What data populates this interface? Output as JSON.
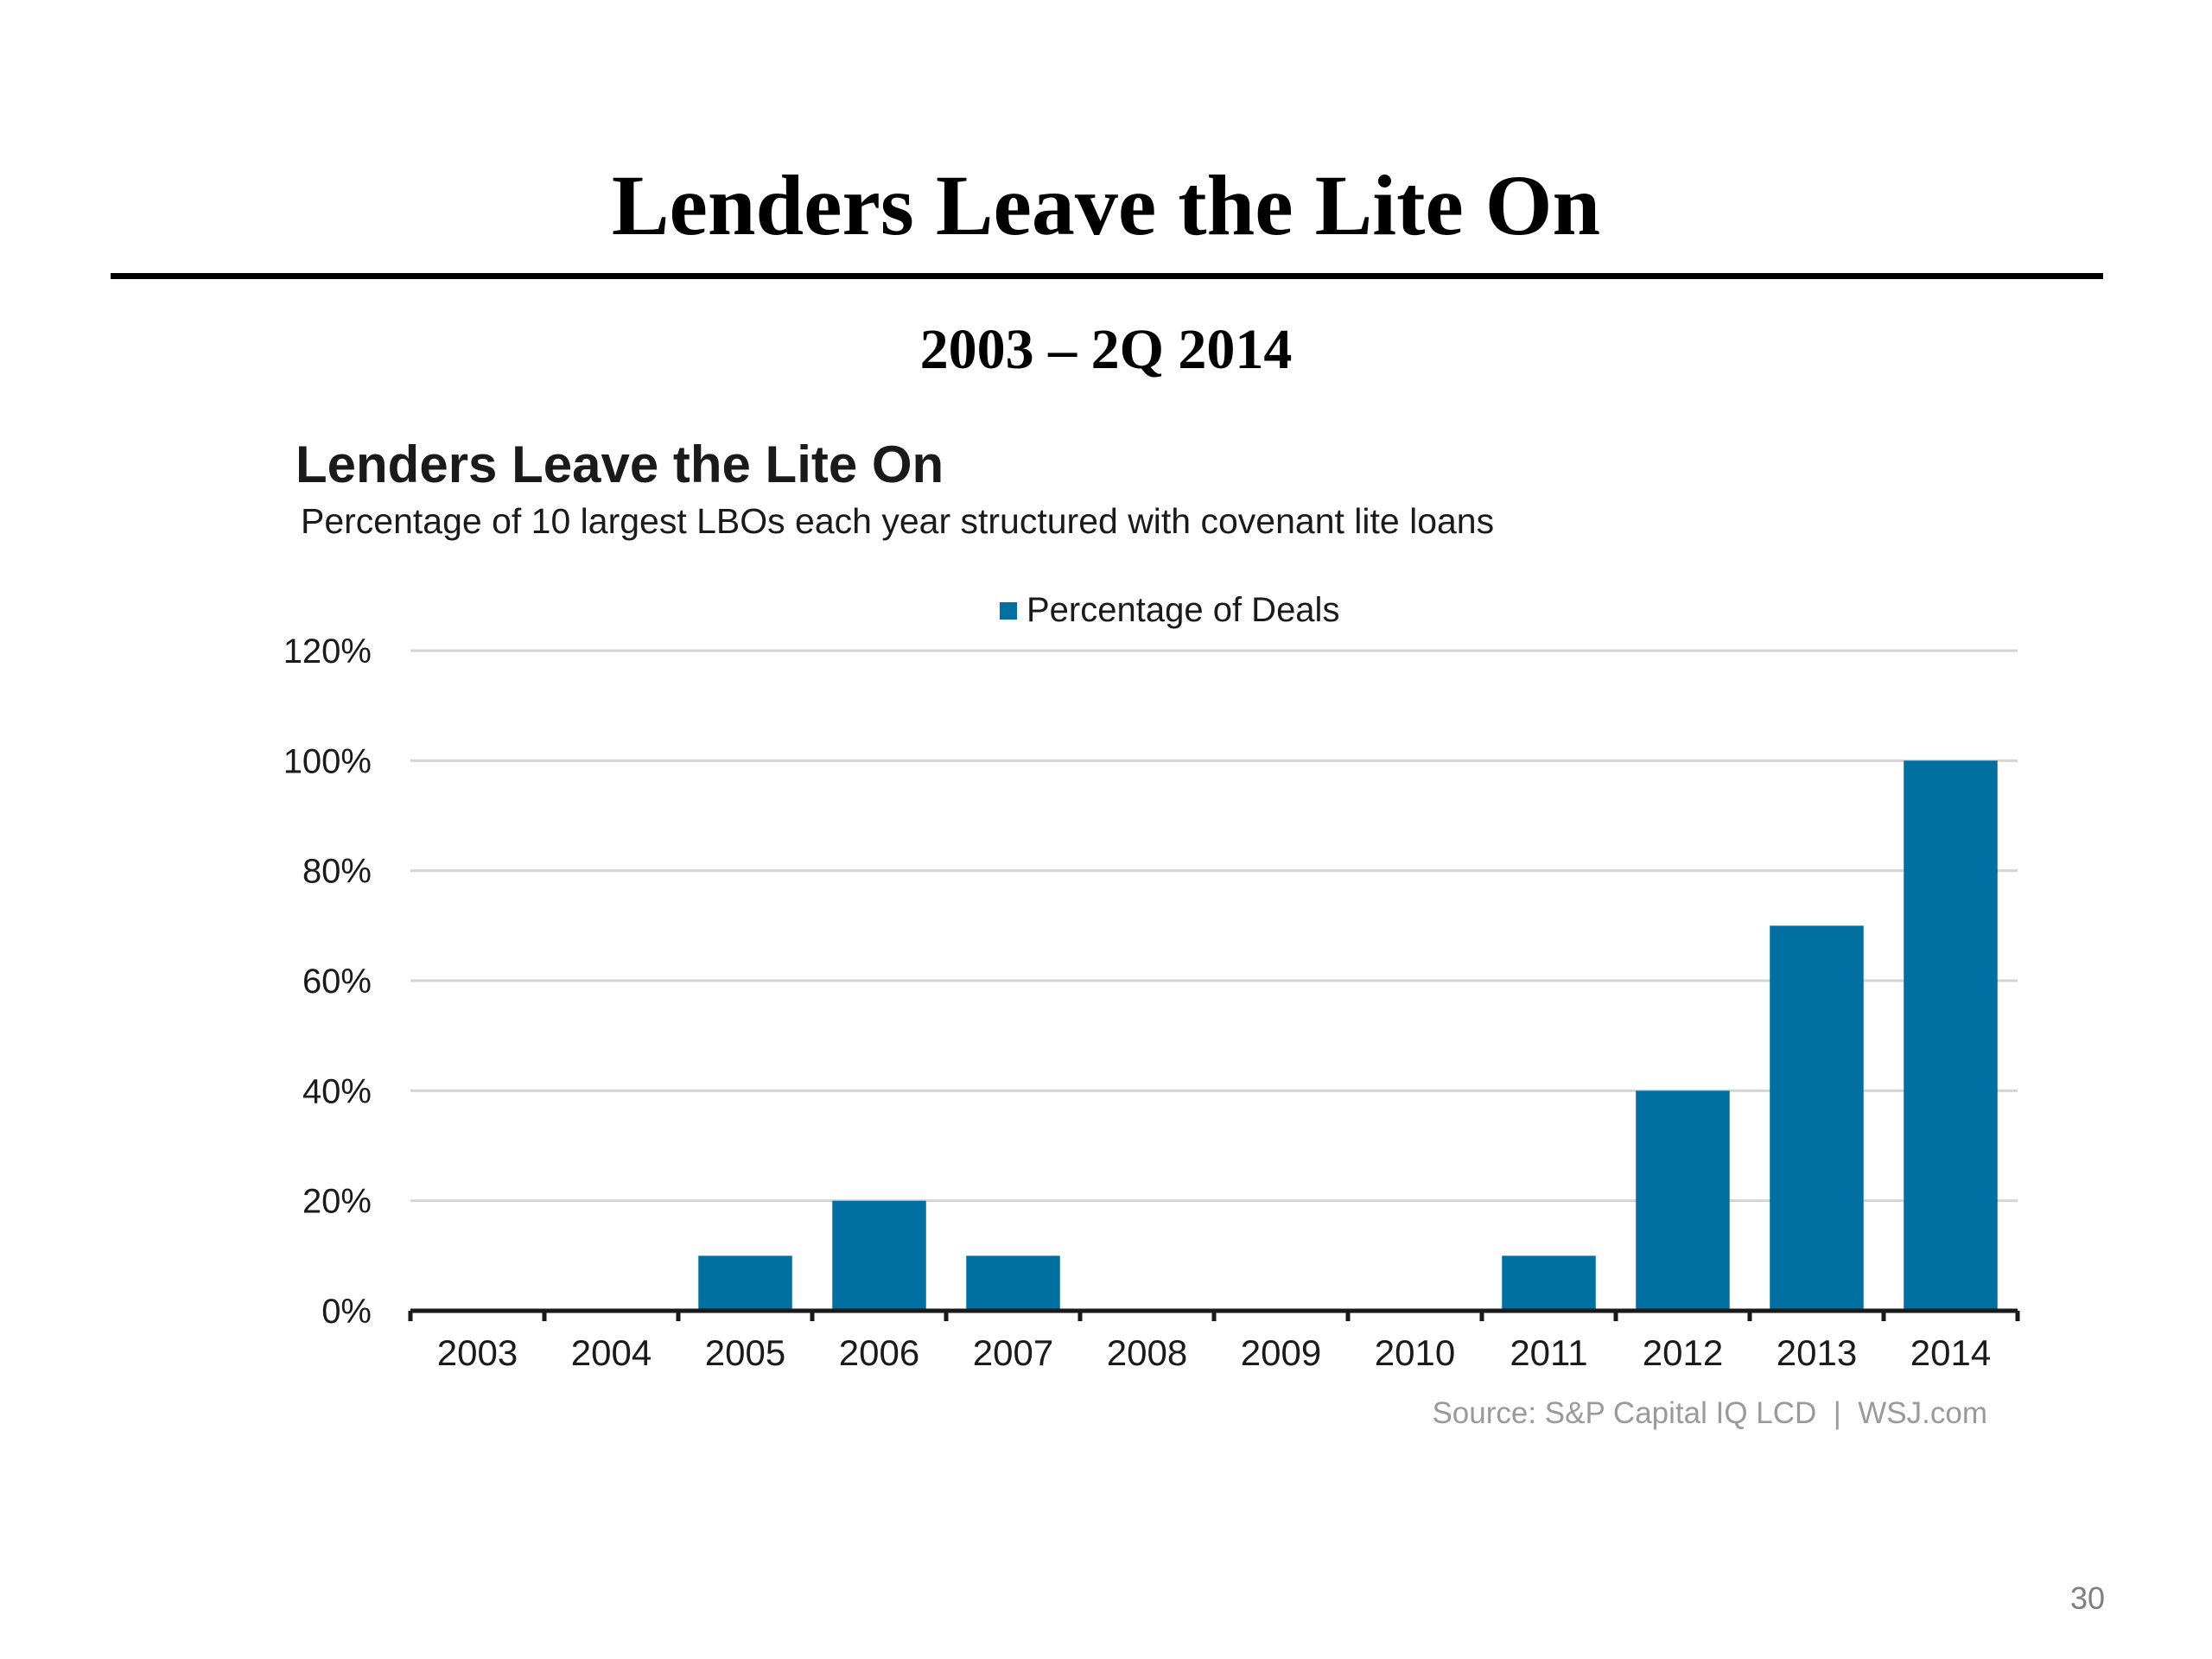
{
  "slide": {
    "title": "Lenders Leave the Lite On",
    "subtitle": "2003 – 2Q 2014",
    "page_number": "30"
  },
  "chart_data": {
    "type": "bar",
    "title": "Lenders Leave the Lite On",
    "subtitle": "Percentage of 10 largest LBOs each year structured with covenant lite loans",
    "categories": [
      "2003",
      "2004",
      "2005",
      "2006",
      "2007",
      "2008",
      "2009",
      "2010",
      "2011",
      "2012",
      "2013",
      "2014"
    ],
    "series": [
      {
        "name": "Percentage of Deals",
        "values": [
          0,
          0,
          10,
          20,
          10,
          0,
          0,
          0,
          10,
          40,
          70,
          100
        ],
        "color": "#0070a2"
      }
    ],
    "yticks": [
      "0%",
      "20%",
      "40%",
      "60%",
      "80%",
      "100%",
      "120%"
    ],
    "ylim": [
      0,
      120
    ],
    "grid": true,
    "legend_position": "top-center",
    "source": "Source: S&P Capital IQ LCD  |  WSJ.com"
  }
}
